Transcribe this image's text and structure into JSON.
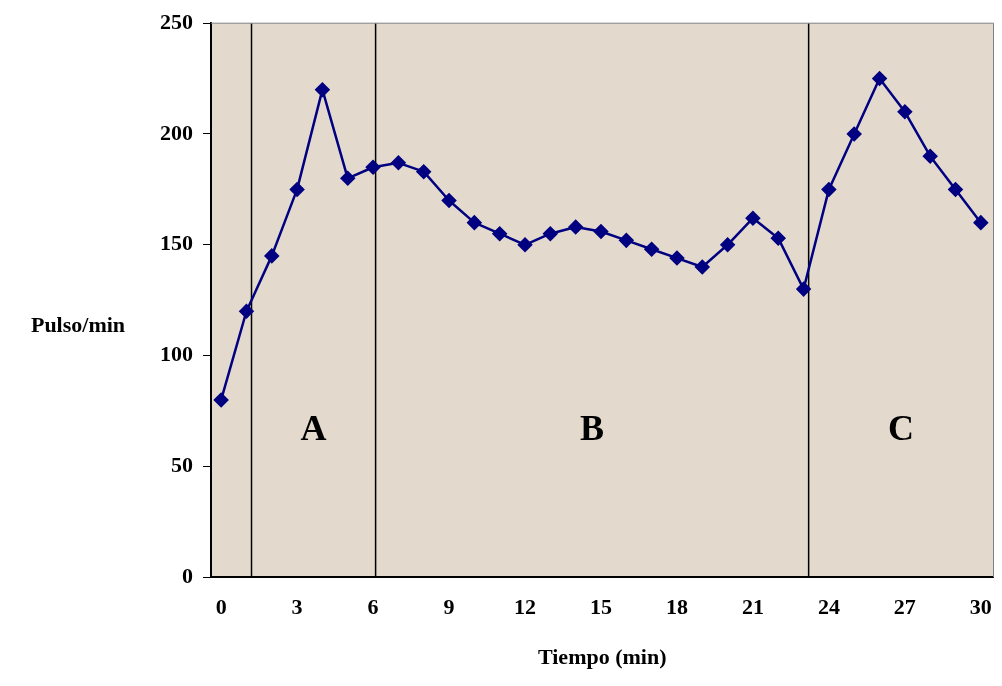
{
  "chart_data": {
    "type": "line",
    "xlabel": "Tiempo (min)",
    "ylabel": "Pulso/min",
    "x": [
      0,
      1,
      2,
      3,
      4,
      5,
      6,
      7,
      8,
      9,
      10,
      11,
      12,
      13,
      14,
      15,
      16,
      17,
      18,
      19,
      20,
      21,
      22,
      23,
      24,
      25,
      26,
      27,
      28,
      29,
      30
    ],
    "series": [
      {
        "color": "#000080",
        "values": [
          80,
          120,
          145,
          175,
          220,
          180,
          185,
          187,
          183,
          170,
          160,
          155,
          150,
          155,
          158,
          156,
          152,
          148,
          144,
          140,
          150,
          162,
          153,
          130,
          175,
          200,
          225,
          210,
          190,
          175,
          160
        ]
      }
    ],
    "xlim": [
      -0.4,
      30.5
    ],
    "xticks": [
      0,
      3,
      6,
      9,
      12,
      15,
      18,
      21,
      24,
      27,
      30
    ],
    "ylim": [
      0,
      250
    ],
    "yticks": [
      0,
      50,
      100,
      150,
      200,
      250
    ],
    "ref_lines": [
      {
        "axis": "x",
        "value": 1.2,
        "color": "#000000"
      },
      {
        "axis": "x",
        "value": 6.1,
        "color": "#000000"
      },
      {
        "axis": "x",
        "value": 23.2,
        "color": "#000000"
      }
    ],
    "annotations": [
      "A",
      "B",
      "C"
    ],
    "grid": false,
    "legend": false,
    "marker": "diamond",
    "line_style": "solid"
  }
}
